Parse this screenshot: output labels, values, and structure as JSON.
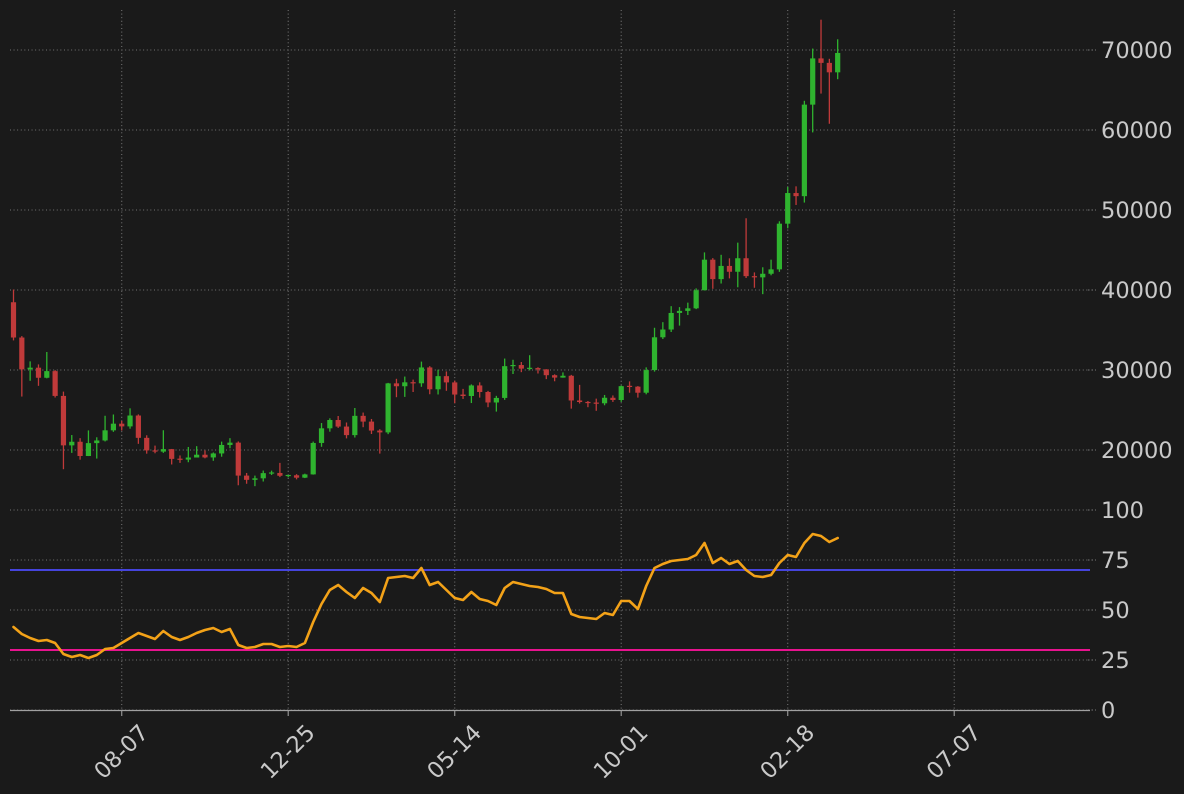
{
  "figure": {
    "background": "#1a1a1a"
  },
  "chart_data": {
    "type": "candlestick",
    "title": "",
    "timeframe": "weekly",
    "grid": true,
    "legend_position": "none",
    "x_tick_labels": [
      "08-07",
      "12-25",
      "05-14",
      "10-01",
      "02-18",
      "07-07"
    ],
    "x_tick_indices": [
      13,
      33,
      53,
      73,
      93,
      113
    ],
    "colors": {
      "background": "#1a1a1a",
      "up_candle": "#2fb42f",
      "down_candle": "#c03a3a",
      "rsi_line": "#f3a218",
      "overbought_line": "#4544dd",
      "oversold_line": "#e8138f",
      "grid": "#cdcdcd",
      "tick_label": "#c9c9c9",
      "axis_line": "#a0a0a0"
    },
    "price_panel": {
      "ylabel_side": "right",
      "yticks": [
        20000,
        30000,
        40000,
        50000,
        60000,
        70000
      ],
      "ylim": [
        13000,
        75000
      ],
      "dates": [
        "2022-05-08",
        "2022-05-15",
        "2022-05-22",
        "2022-05-29",
        "2022-06-05",
        "2022-06-12",
        "2022-06-19",
        "2022-06-26",
        "2022-07-03",
        "2022-07-10",
        "2022-07-17",
        "2022-07-24",
        "2022-07-31",
        "2022-08-07",
        "2022-08-14",
        "2022-08-21",
        "2022-08-28",
        "2022-09-04",
        "2022-09-11",
        "2022-09-18",
        "2022-09-25",
        "2022-10-02",
        "2022-10-09",
        "2022-10-16",
        "2022-10-23",
        "2022-10-30",
        "2022-11-06",
        "2022-11-13",
        "2022-11-20",
        "2022-11-27",
        "2022-12-04",
        "2022-12-11",
        "2022-12-18",
        "2022-12-25",
        "2023-01-01",
        "2023-01-08",
        "2023-01-15",
        "2023-01-22",
        "2023-01-29",
        "2023-02-05",
        "2023-02-12",
        "2023-02-19",
        "2023-02-26",
        "2023-03-05",
        "2023-03-12",
        "2023-03-19",
        "2023-03-26",
        "2023-04-02",
        "2023-04-09",
        "2023-04-16",
        "2023-04-23",
        "2023-04-30",
        "2023-05-07",
        "2023-05-14",
        "2023-05-21",
        "2023-05-28",
        "2023-06-04",
        "2023-06-11",
        "2023-06-18",
        "2023-06-25",
        "2023-07-02",
        "2023-07-09",
        "2023-07-16",
        "2023-07-23",
        "2023-07-30",
        "2023-08-06",
        "2023-08-13",
        "2023-08-20",
        "2023-08-27",
        "2023-09-03",
        "2023-09-10",
        "2023-09-17",
        "2023-09-24",
        "2023-10-01",
        "2023-10-08",
        "2023-10-15",
        "2023-10-22",
        "2023-10-29",
        "2023-11-05",
        "2023-11-12",
        "2023-11-19",
        "2023-11-26",
        "2023-12-03",
        "2023-12-10",
        "2023-12-17",
        "2023-12-24",
        "2023-12-31",
        "2024-01-07",
        "2024-01-14",
        "2024-01-21",
        "2024-01-28",
        "2024-02-04",
        "2024-02-11",
        "2024-02-18",
        "2024-02-25",
        "2024-03-03",
        "2024-03-10",
        "2024-03-17",
        "2024-03-24",
        "2024-03-31"
      ],
      "open": [
        38470,
        34060,
        30080,
        30290,
        29030,
        29860,
        26760,
        20580,
        21030,
        19250,
        20860,
        21190,
        22460,
        23290,
        22950,
        24310,
        21520,
        19950,
        19800,
        20110,
        18890,
        18800,
        19060,
        19410,
        19070,
        19570,
        20630,
        20920,
        16800,
        16270,
        16460,
        17110,
        17130,
        16780,
        16840,
        16540,
        16950,
        20880,
        22710,
        23750,
        22930,
        21860,
        24270,
        23550,
        22430,
        22200,
        28330,
        27970,
        28460,
        28340,
        30320,
        27590,
        29230,
        28450,
        26930,
        26750,
        28070,
        27250,
        25940,
        26510,
        30480,
        30620,
        30170,
        30240,
        30080,
        29350,
        29050,
        29280,
        26190,
        26000,
        25870,
        25840,
        26530,
        26250,
        27980,
        27920,
        27160,
        29990,
        34090,
        35060,
        37130,
        37390,
        37710,
        39970,
        43790,
        41360,
        43010,
        42280,
        43970,
        41730,
        41580,
        42030,
        42580,
        48290,
        52120,
        51730,
        63170,
        68950,
        68390,
        67210
      ],
      "high": [
        40060,
        34240,
        31080,
        30700,
        32250,
        29980,
        27300,
        21870,
        21480,
        22450,
        21590,
        24280,
        24440,
        23640,
        25210,
        24450,
        21840,
        20550,
        22470,
        20130,
        19320,
        20380,
        20480,
        19950,
        19690,
        21050,
        21480,
        21070,
        17130,
        16800,
        17430,
        17420,
        18390,
        16870,
        16980,
        17040,
        21050,
        23370,
        23960,
        24250,
        23440,
        25250,
        24680,
        23880,
        22600,
        28390,
        28900,
        29180,
        28800,
        31050,
        30480,
        30040,
        29820,
        28670,
        27640,
        28200,
        28460,
        27390,
        26770,
        31430,
        31280,
        31000,
        31850,
        30340,
        30100,
        29460,
        29700,
        29390,
        28140,
        26130,
        26420,
        26880,
        26820,
        28060,
        28580,
        27990,
        30330,
        35280,
        35980,
        37980,
        37860,
        38420,
        40200,
        44700,
        43990,
        44400,
        43960,
        45920,
        48970,
        42200,
        42840,
        43790,
        48590,
        52880,
        52960,
        63650,
        70180,
        73790,
        68900,
        71340
      ],
      "low": [
        33700,
        26680,
        28650,
        28020,
        28960,
        26560,
        17600,
        19640,
        18790,
        19240,
        18930,
        21070,
        22270,
        22430,
        22660,
        20770,
        19540,
        19590,
        19640,
        18190,
        18390,
        18470,
        19320,
        18960,
        18650,
        19160,
        20220,
        15590,
        15780,
        15480,
        16060,
        16880,
        16610,
        16580,
        16330,
        16490,
        16920,
        20400,
        22290,
        22760,
        21450,
        21560,
        22850,
        22000,
        19550,
        21980,
        26600,
        26640,
        27250,
        27900,
        26970,
        26940,
        27400,
        25850,
        26380,
        25870,
        26550,
        25350,
        24800,
        26270,
        29500,
        29730,
        29950,
        29560,
        28860,
        28590,
        29040,
        25170,
        25810,
        25350,
        24900,
        25590,
        26010,
        26010,
        27160,
        26550,
        26960,
        29800,
        33870,
        34750,
        35550,
        36870,
        37610,
        39940,
        40150,
        40810,
        41450,
        40340,
        41500,
        40280,
        39480,
        41840,
        42270,
        47710,
        50630,
        50930,
        59700,
        64550,
        60780,
        66350
      ],
      "close": [
        34060,
        30080,
        30290,
        29030,
        29860,
        26760,
        20580,
        21030,
        19250,
        20860,
        21190,
        22460,
        23290,
        22950,
        24310,
        21520,
        19950,
        19800,
        20110,
        18890,
        18800,
        19060,
        19410,
        19070,
        19570,
        20630,
        20920,
        16800,
        16270,
        16460,
        17110,
        17130,
        16780,
        16840,
        16540,
        16950,
        20880,
        22710,
        23750,
        22930,
        21860,
        24270,
        23550,
        22430,
        22200,
        28330,
        27970,
        28460,
        28340,
        30320,
        27590,
        29230,
        28450,
        26930,
        26750,
        28070,
        27250,
        25940,
        26510,
        30480,
        30620,
        30170,
        30240,
        30080,
        29350,
        29050,
        29280,
        26190,
        26000,
        25870,
        25840,
        26530,
        26250,
        27980,
        27920,
        27160,
        29990,
        34090,
        35060,
        37130,
        37390,
        37710,
        39970,
        43790,
        41360,
        43010,
        42280,
        43970,
        41730,
        41580,
        42030,
        42580,
        48290,
        52120,
        51730,
        63170,
        68950,
        68390,
        67210,
        69630
      ]
    },
    "rsi_panel": {
      "ylabel_side": "right",
      "yticks": [
        0,
        25,
        50,
        75,
        100
      ],
      "ylim": [
        0,
        102
      ],
      "line_name": "RSI-14",
      "values": [
        41.5,
        38,
        36,
        34.5,
        35,
        33.5,
        28,
        26.5,
        27.5,
        26,
        27.5,
        30.5,
        31,
        33.5,
        36,
        38.5,
        37,
        35.5,
        39.5,
        36.5,
        35,
        36.5,
        38.5,
        40,
        41,
        39,
        40.5,
        32.5,
        31,
        31.5,
        33,
        33,
        31.5,
        32,
        31.5,
        33.5,
        44,
        53,
        60,
        62.5,
        59,
        56,
        61,
        58.5,
        54,
        66,
        66.5,
        67,
        66,
        71,
        62.5,
        64,
        60,
        56,
        55,
        59,
        55.5,
        54.5,
        52.5,
        61,
        64,
        63,
        62,
        61.5,
        60.5,
        58.5,
        58.5,
        48,
        46.5,
        46,
        45.5,
        48.5,
        47.5,
        54.5,
        54.5,
        50.5,
        62,
        71,
        73,
        74.5,
        75,
        75.5,
        77.5,
        83.5,
        73.5,
        76,
        73,
        74.5,
        70,
        67,
        66.5,
        67.5,
        73.5,
        77.5,
        76.5,
        83.5,
        88,
        87,
        84,
        86
      ],
      "hlines": [
        {
          "value": 70,
          "color": "#4544dd",
          "name": "overbought-line"
        },
        {
          "value": 30,
          "color": "#e8138f",
          "name": "oversold-line"
        }
      ]
    },
    "price_tick_labels": [
      "70000",
      "60000",
      "50000",
      "40000",
      "30000",
      "20000"
    ],
    "rsi_tick_labels": [
      "100",
      "75",
      "50",
      "25",
      "0"
    ]
  }
}
